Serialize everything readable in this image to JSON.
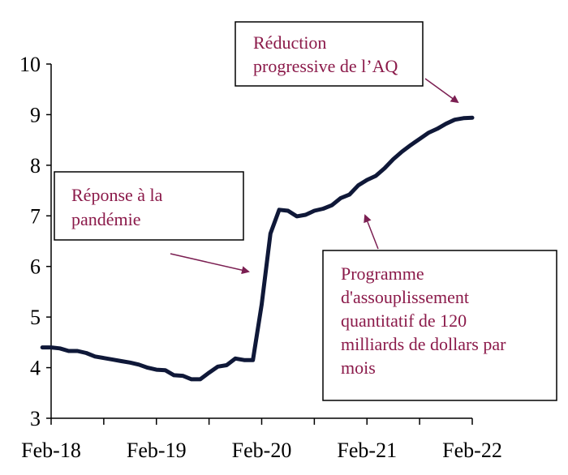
{
  "chart_data": {
    "type": "line",
    "title": "",
    "xlabel": "",
    "ylabel": "",
    "ylim": [
      3,
      10
    ],
    "yticks": [
      3,
      4,
      5,
      6,
      7,
      8,
      9,
      10
    ],
    "xticks": [
      "Feb-18",
      "Feb-19",
      "Feb-20",
      "Feb-21",
      "Feb-22"
    ],
    "grid": false,
    "x": [
      "2018-01",
      "2018-02",
      "2018-03",
      "2018-04",
      "2018-05",
      "2018-06",
      "2018-07",
      "2018-08",
      "2018-09",
      "2018-10",
      "2018-11",
      "2018-12",
      "2019-01",
      "2019-02",
      "2019-03",
      "2019-04",
      "2019-05",
      "2019-06",
      "2019-07",
      "2019-08",
      "2019-09",
      "2019-10",
      "2019-11",
      "2019-12",
      "2020-01",
      "2020-02",
      "2020-03",
      "2020-04",
      "2020-05",
      "2020-06",
      "2020-07",
      "2020-08",
      "2020-09",
      "2020-10",
      "2020-11",
      "2020-12",
      "2021-01",
      "2021-02",
      "2021-03",
      "2021-04",
      "2021-05",
      "2021-06",
      "2021-07",
      "2021-08",
      "2021-09",
      "2021-10",
      "2021-11",
      "2021-12",
      "2022-01",
      "2022-02"
    ],
    "series": [
      {
        "values": [
          4.4,
          4.4,
          4.38,
          4.33,
          4.33,
          4.29,
          4.22,
          4.19,
          4.16,
          4.13,
          4.1,
          4.06,
          4.0,
          3.96,
          3.95,
          3.85,
          3.84,
          3.77,
          3.77,
          3.9,
          4.02,
          4.05,
          4.18,
          4.15,
          4.15,
          5.25,
          6.65,
          7.12,
          7.1,
          6.99,
          7.02,
          7.1,
          7.14,
          7.21,
          7.35,
          7.42,
          7.6,
          7.71,
          7.79,
          7.94,
          8.12,
          8.27,
          8.4,
          8.52,
          8.64,
          8.72,
          8.82,
          8.9,
          8.93,
          8.94
        ]
      }
    ],
    "annotations": [
      {
        "lines": [
          "Réduction",
          "progressive de l’AQ"
        ]
      },
      {
        "lines": [
          "Réponse à la",
          "pandémie"
        ]
      },
      {
        "lines": [
          "Programme",
          "d'assouplissement",
          "quantitatif de 120",
          "milliards de dollars par",
          "mois"
        ]
      }
    ],
    "colors": {
      "line": "#0F1838",
      "annotation_text": "#8B1A4A",
      "arrow": "#7B1F52",
      "axis": "#000000"
    }
  }
}
